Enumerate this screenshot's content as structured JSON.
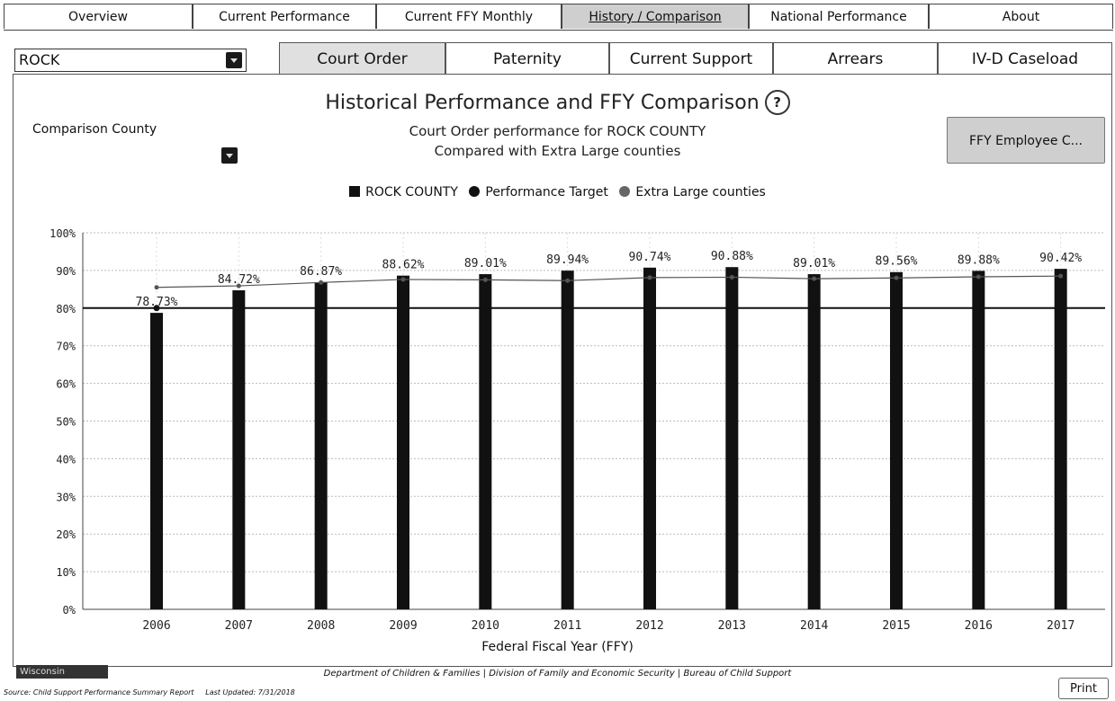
{
  "nav": {
    "tabs": [
      "Overview",
      "Current Performance",
      "Current FFY Monthly",
      "History / Comparison",
      "National Performance",
      "About"
    ],
    "active": "History / Comparison"
  },
  "county_select": {
    "value": "ROCK"
  },
  "subtabs": {
    "items": [
      "Court Order",
      "Paternity",
      "Current Support",
      "Arrears",
      "IV-D Caseload"
    ],
    "active": "Court Order"
  },
  "header": {
    "title": "Historical Performance and FFY Comparison",
    "help": "?",
    "subtitle1": "Court Order performance for ROCK COUNTY",
    "subtitle2": "Compared with Extra Large counties"
  },
  "comparison": {
    "label": "Comparison County"
  },
  "ffy_button": "FFY Employee C...",
  "legend": {
    "county": "ROCK COUNTY",
    "target": "Performance Target",
    "group": "Extra Large counties"
  },
  "colors": {
    "bar": "#111111",
    "target": "#111111",
    "group": "#555555"
  },
  "chart_data": {
    "type": "bar",
    "categories": [
      "2006",
      "2007",
      "2008",
      "2009",
      "2010",
      "2011",
      "2012",
      "2013",
      "2014",
      "2015",
      "2016",
      "2017"
    ],
    "series": [
      {
        "name": "ROCK COUNTY",
        "type": "bar",
        "values": [
          78.73,
          84.72,
          86.87,
          88.62,
          89.01,
          89.94,
          90.74,
          90.88,
          89.01,
          89.56,
          89.88,
          90.42
        ]
      },
      {
        "name": "Performance Target",
        "type": "line",
        "values": [
          80,
          80,
          80,
          80,
          80,
          80,
          80,
          80,
          80,
          80,
          80,
          80
        ]
      },
      {
        "name": "Extra Large counties",
        "type": "line",
        "values": [
          85.5,
          85.9,
          86.8,
          87.6,
          87.5,
          87.3,
          88.1,
          88.2,
          87.8,
          88.0,
          88.3,
          88.5
        ]
      }
    ],
    "data_labels": [
      "78.73%",
      "84.72%",
      "86.87%",
      "88.62%",
      "89.01%",
      "89.94%",
      "90.74%",
      "90.88%",
      "89.01%",
      "89.56%",
      "89.88%",
      "90.42%"
    ],
    "yticks": [
      "0%",
      "10%",
      "20%",
      "30%",
      "40%",
      "50%",
      "60%",
      "70%",
      "80%",
      "90%",
      "100%"
    ],
    "ylim": [
      0,
      100
    ],
    "xlabel": "Federal Fiscal Year (FFY)",
    "ylabel": "",
    "grid": true
  },
  "footer": {
    "logo": "Wisconsin",
    "departments": "Department of Children & Families   |   Division of Family and Economic Security   |   Bureau of Child Support",
    "source": "Source: Child Support Performance Summary Report",
    "updated": "Last Updated: 7/31/2018"
  },
  "print_label": "Print"
}
